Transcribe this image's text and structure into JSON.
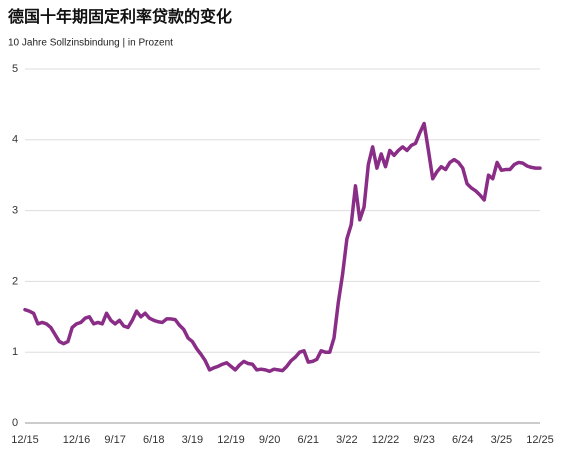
{
  "chart_data": {
    "type": "line",
    "title": "德国十年期固定利率贷款的变化",
    "subtitle": "10 Jahre Sollzinsbindung | in Prozent",
    "categories": [
      "12/15",
      null,
      null,
      null,
      null,
      null,
      null,
      null,
      null,
      null,
      null,
      null,
      "12/16",
      null,
      null,
      null,
      null,
      null,
      null,
      null,
      null,
      "9/17",
      null,
      null,
      null,
      null,
      null,
      null,
      null,
      null,
      "6/18",
      null,
      null,
      null,
      null,
      null,
      null,
      null,
      null,
      "3/19",
      null,
      null,
      null,
      null,
      null,
      null,
      null,
      null,
      "12/19",
      null,
      null,
      null,
      null,
      null,
      null,
      null,
      null,
      "9/20",
      null,
      null,
      null,
      null,
      null,
      null,
      null,
      null,
      "6/21",
      null,
      null,
      null,
      null,
      null,
      null,
      null,
      null,
      "3/22",
      null,
      null,
      null,
      null,
      null,
      null,
      null,
      null,
      "12/22",
      null,
      null,
      null,
      null,
      null,
      null,
      null,
      null,
      "9/23",
      null,
      null,
      null,
      null,
      null,
      null,
      null,
      null,
      "6/24",
      null,
      null,
      null,
      null,
      null,
      null,
      null,
      null,
      "3/25",
      null,
      null,
      null,
      null,
      null,
      null,
      null,
      null,
      "12/25"
    ],
    "values": [
      1.6,
      1.58,
      1.55,
      1.4,
      1.42,
      1.4,
      1.35,
      1.25,
      1.15,
      1.12,
      1.15,
      1.35,
      1.4,
      1.42,
      1.48,
      1.5,
      1.4,
      1.42,
      1.4,
      1.55,
      1.45,
      1.4,
      1.45,
      1.37,
      1.35,
      1.45,
      1.58,
      1.5,
      1.55,
      1.48,
      1.45,
      1.43,
      1.42,
      1.47,
      1.47,
      1.46,
      1.38,
      1.32,
      1.2,
      1.15,
      1.05,
      0.97,
      0.88,
      0.75,
      0.78,
      0.8,
      0.83,
      0.85,
      0.8,
      0.75,
      0.82,
      0.87,
      0.84,
      0.83,
      0.75,
      0.76,
      0.75,
      0.73,
      0.76,
      0.75,
      0.74,
      0.8,
      0.88,
      0.93,
      1.0,
      1.02,
      0.86,
      0.87,
      0.9,
      1.02,
      1.0,
      1.0,
      1.2,
      1.7,
      2.1,
      2.6,
      2.8,
      3.35,
      2.87,
      3.05,
      3.65,
      3.9,
      3.6,
      3.8,
      3.62,
      3.85,
      3.78,
      3.85,
      3.9,
      3.85,
      3.92,
      3.95,
      4.1,
      4.23,
      3.85,
      3.45,
      3.55,
      3.62,
      3.58,
      3.68,
      3.72,
      3.68,
      3.6,
      3.38,
      3.32,
      3.28,
      3.22,
      3.15,
      3.5,
      3.45,
      3.68,
      3.57,
      3.58,
      3.58,
      3.65,
      3.68,
      3.67,
      3.63,
      3.61,
      3.6,
      3.6
    ],
    "color": "#8a2d87",
    "ylim": [
      0,
      5
    ],
    "yticks": [
      0,
      1,
      2,
      3,
      4,
      5
    ],
    "grid": true
  }
}
